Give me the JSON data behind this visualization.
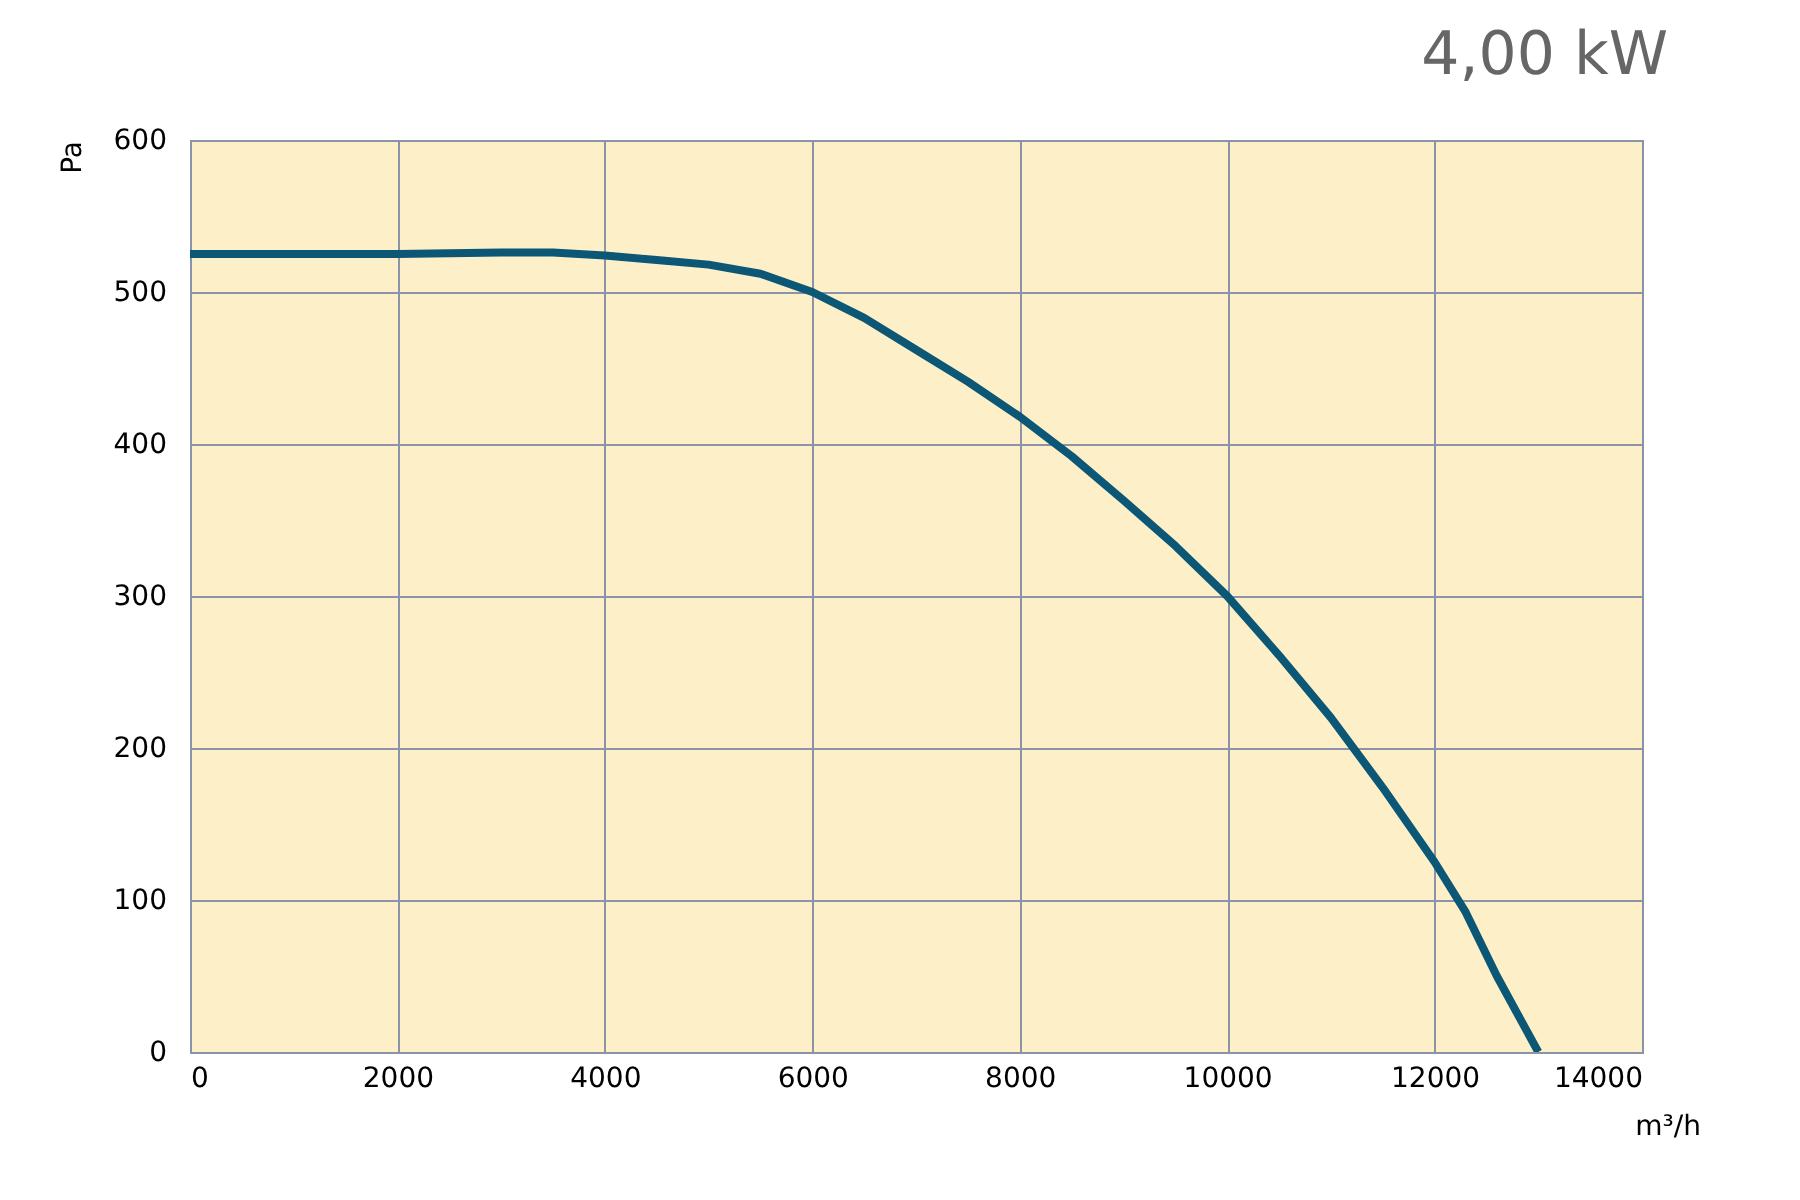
{
  "chart_data": {
    "type": "line",
    "title": "4,00 kW",
    "xlabel": "m³/h",
    "ylabel": "Pa",
    "x": [
      0,
      1000,
      2000,
      3000,
      3500,
      4000,
      4500,
      5000,
      5500,
      6000,
      6500,
      7000,
      7500,
      8000,
      8500,
      9000,
      9500,
      10000,
      10500,
      11000,
      11500,
      12000,
      12300,
      12600,
      13000
    ],
    "series": [
      {
        "color": "#0b5775",
        "values": [
          525,
          525,
          525,
          526,
          526,
          524,
          521,
          518,
          512,
          500,
          483,
          462,
          441,
          418,
          392,
          363,
          333,
          300,
          261,
          220,
          174,
          125,
          92,
          50,
          0
        ]
      }
    ],
    "xlim": [
      0,
      14000
    ],
    "ylim": [
      0,
      600
    ],
    "xticks": [
      0,
      2000,
      4000,
      6000,
      8000,
      10000,
      12000,
      14000
    ],
    "yticks": [
      0,
      100,
      200,
      300,
      400,
      500,
      600
    ],
    "grid": true
  }
}
